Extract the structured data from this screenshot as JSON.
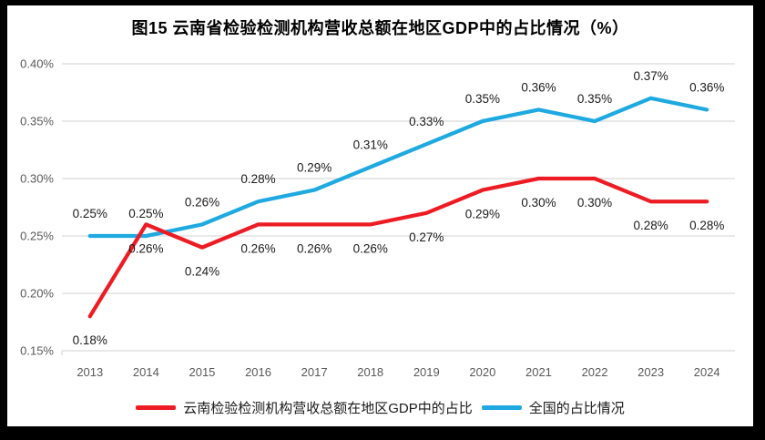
{
  "chart_data": {
    "type": "line",
    "title": "图15 云南省检验检测机构营收总额在地区GDP中的占比情况（%）",
    "categories": [
      "2013",
      "2014",
      "2015",
      "2016",
      "2017",
      "2018",
      "2019",
      "2020",
      "2021",
      "2022",
      "2023",
      "2024"
    ],
    "series": [
      {
        "name": "云南检验检测机构营收总额在地区GDP中的占比",
        "color": "#ed1c24",
        "values": [
          0.18,
          0.26,
          0.24,
          0.26,
          0.26,
          0.26,
          0.27,
          0.29,
          0.3,
          0.3,
          0.28,
          0.28
        ],
        "point_labels": [
          "0.18%",
          "0.26%",
          "0.24%",
          "0.26%",
          "0.26%",
          "0.26%",
          "0.27%",
          "0.29%",
          "0.30%",
          "0.30%",
          "0.28%",
          "0.28%"
        ],
        "label_position": "below"
      },
      {
        "name": "全国的占比情况",
        "color": "#1ea9e1",
        "values": [
          0.25,
          0.25,
          0.26,
          0.28,
          0.29,
          0.31,
          0.33,
          0.35,
          0.36,
          0.35,
          0.37,
          0.36
        ],
        "point_labels": [
          "0.25%",
          "0.25%",
          "0.26%",
          "0.28%",
          "0.29%",
          "0.31%",
          "0.33%",
          "0.35%",
          "0.36%",
          "0.35%",
          "0.37%",
          "0.36%"
        ],
        "label_position": "above"
      }
    ],
    "ylim": [
      0.15,
      0.4
    ],
    "yticks": [
      {
        "value": 0.4,
        "label": "0.40%"
      },
      {
        "value": 0.35,
        "label": "0.35%"
      },
      {
        "value": 0.3,
        "label": "0.30%"
      },
      {
        "value": 0.25,
        "label": "0.25%"
      },
      {
        "value": 0.2,
        "label": "0.20%"
      },
      {
        "value": 0.15,
        "label": "0.15%"
      }
    ],
    "grid": true,
    "legend_position": "bottom"
  },
  "colors": {
    "grid": "#d9d9d9",
    "axis_tick_text": "#595959",
    "data_label_text": "#1a1a1a",
    "frame": "#000000",
    "panel_background": "#ffffff"
  }
}
